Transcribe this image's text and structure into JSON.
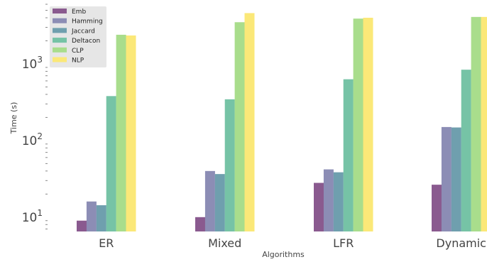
{
  "chart_data": {
    "type": "bar",
    "xlabel": "Algorithms",
    "ylabel": "Time (s)",
    "yscale": "log",
    "ylim": [
      6.5,
      6000
    ],
    "grid": false,
    "legend_position": "top-left",
    "categories": [
      "ER",
      "Mixed",
      "LFR",
      "Dynamic"
    ],
    "series": [
      {
        "name": "Emb",
        "color": "#8a5a8f",
        "values": [
          9,
          10,
          28,
          26.5
        ]
      },
      {
        "name": "Hamming",
        "color": "#8c8db5",
        "values": [
          16,
          40,
          42,
          150
        ]
      },
      {
        "name": "Jaccard",
        "color": "#6f9fae",
        "values": [
          14.3,
          36.5,
          38.5,
          148
        ]
      },
      {
        "name": "Deltacon",
        "color": "#76c3a6",
        "values": [
          380,
          345,
          630,
          840
        ]
      },
      {
        "name": "CLP",
        "color": "#a9dd8c",
        "values": [
          2400,
          3500,
          3900,
          4100
        ]
      },
      {
        "name": "NLP",
        "color": "#fbe878",
        "values": [
          2350,
          4600,
          4000,
          4100
        ]
      }
    ],
    "ytick_labels": [
      {
        "base": "10",
        "exp": "1",
        "value": 10
      },
      {
        "base": "10",
        "exp": "2",
        "value": 100
      },
      {
        "base": "10",
        "exp": "3",
        "value": 1000
      }
    ]
  }
}
